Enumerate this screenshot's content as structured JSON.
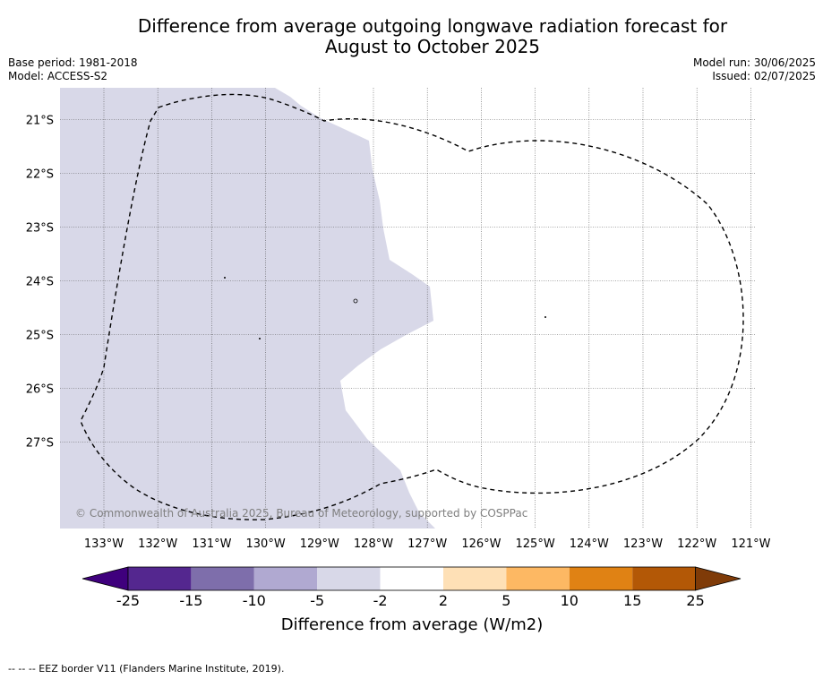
{
  "title_line1": "Difference from average outgoing longwave radiation forecast for",
  "title_line2": "August to October 2025",
  "base_period": "Base period: 1981-2018",
  "model": "Model: ACCESS-S2",
  "model_run": "Model run: 30/06/2025",
  "issued": "Issued: 02/07/2025",
  "copyright": "© Commonwealth of Australia 2025, Bureau of Meteorology, supported by COSPPac",
  "footnote": "-- -- -- EEZ border V11 (Flanders Marine Institute, 2019).",
  "map": {
    "lat_labels": [
      "21°S",
      "22°S",
      "23°S",
      "24°S",
      "25°S",
      "26°S",
      "27°S"
    ],
    "lon_labels": [
      "133°W",
      "132°W",
      "131°W",
      "130°W",
      "129°W",
      "128°W",
      "127°W",
      "126°W",
      "125°W",
      "124°W",
      "123°W",
      "122°W",
      "121°W"
    ],
    "grid": true,
    "shaded_class": "-5 to -2",
    "shaded_color": "#d8d8e8",
    "unshaded_class": "-2 to 2",
    "unshaded_color": "#ffffff"
  },
  "colorbar": {
    "label": "Difference from average (W/m2)",
    "tick_labels": [
      "-25",
      "-15",
      "-10",
      "-5",
      "-2",
      "2",
      "5",
      "10",
      "15",
      "25"
    ],
    "colors": [
      "#3f007d",
      "#54278f",
      "#7e6eab",
      "#b0a9d1",
      "#d8d8e8",
      "#ffffff",
      "#fee0b6",
      "#fdb863",
      "#e08214",
      "#b35806",
      "#7f3b08"
    ]
  }
}
